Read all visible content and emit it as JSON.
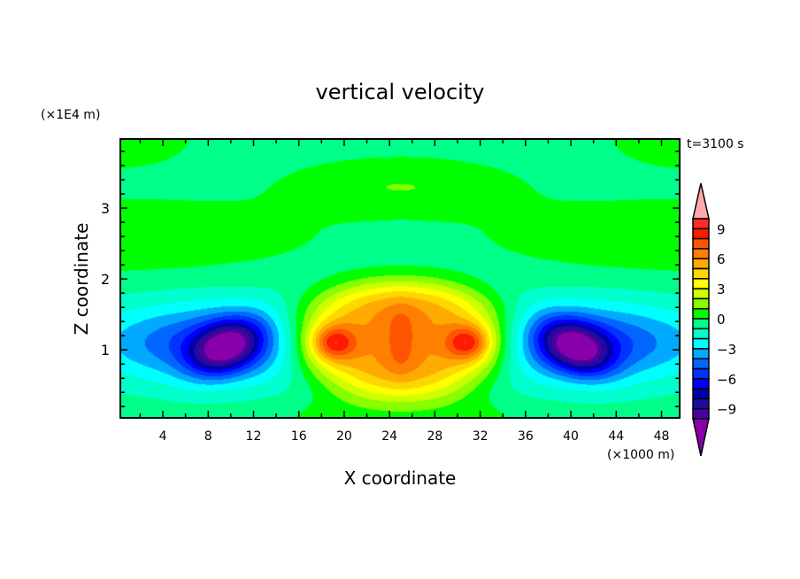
{
  "chart_data": {
    "type": "contour",
    "title": "vertical velocity",
    "xlabel": "X coordinate",
    "ylabel": "Z coordinate",
    "x_unit": "(×1000 m)",
    "y_unit": "(×1E4 m)",
    "annotation": "t=3100 s",
    "xlim": [
      0.25,
      49.6
    ],
    "ylim": [
      0.04,
      3.975
    ],
    "x_ticks": [
      4,
      8,
      12,
      16,
      20,
      24,
      28,
      32,
      36,
      40,
      44,
      48
    ],
    "y_ticks": [
      1,
      2,
      3
    ],
    "grid": false,
    "levels": [
      -10,
      -9,
      -8,
      -7,
      -6,
      -5,
      -4,
      -3,
      -2,
      -1,
      0,
      1,
      2,
      3,
      4,
      5,
      6,
      7,
      8,
      9,
      10
    ],
    "colorbar_labels": [
      "9",
      "6",
      "3",
      "0",
      "−3",
      "−6",
      "−9"
    ],
    "colorbar_label_values": [
      9,
      6,
      3,
      0,
      -3,
      -6,
      -9
    ],
    "colors": [
      "#8800aa",
      "#4b009e",
      "#200aa0",
      "#0000a8",
      "#0000ff",
      "#0033ff",
      "#0066ff",
      "#00aaff",
      "#00ffff",
      "#00ffcc",
      "#00ff88",
      "#00ff00",
      "#88ff00",
      "#ccff00",
      "#ffff00",
      "#ffd700",
      "#ffaa00",
      "#ff8000",
      "#ff5500",
      "#ff1a00",
      "#ff2a2a",
      "#ffaaaa"
    ],
    "features": {
      "updraft_center_x": 25,
      "updraft_peaks": [
        {
          "x": 19,
          "z": 1.1
        },
        {
          "x": 31,
          "z": 1.1
        }
      ],
      "downdraft_cores": [
        {
          "x": 10,
          "z": 1.05
        },
        {
          "x": 40,
          "z": 1.05
        }
      ]
    }
  }
}
